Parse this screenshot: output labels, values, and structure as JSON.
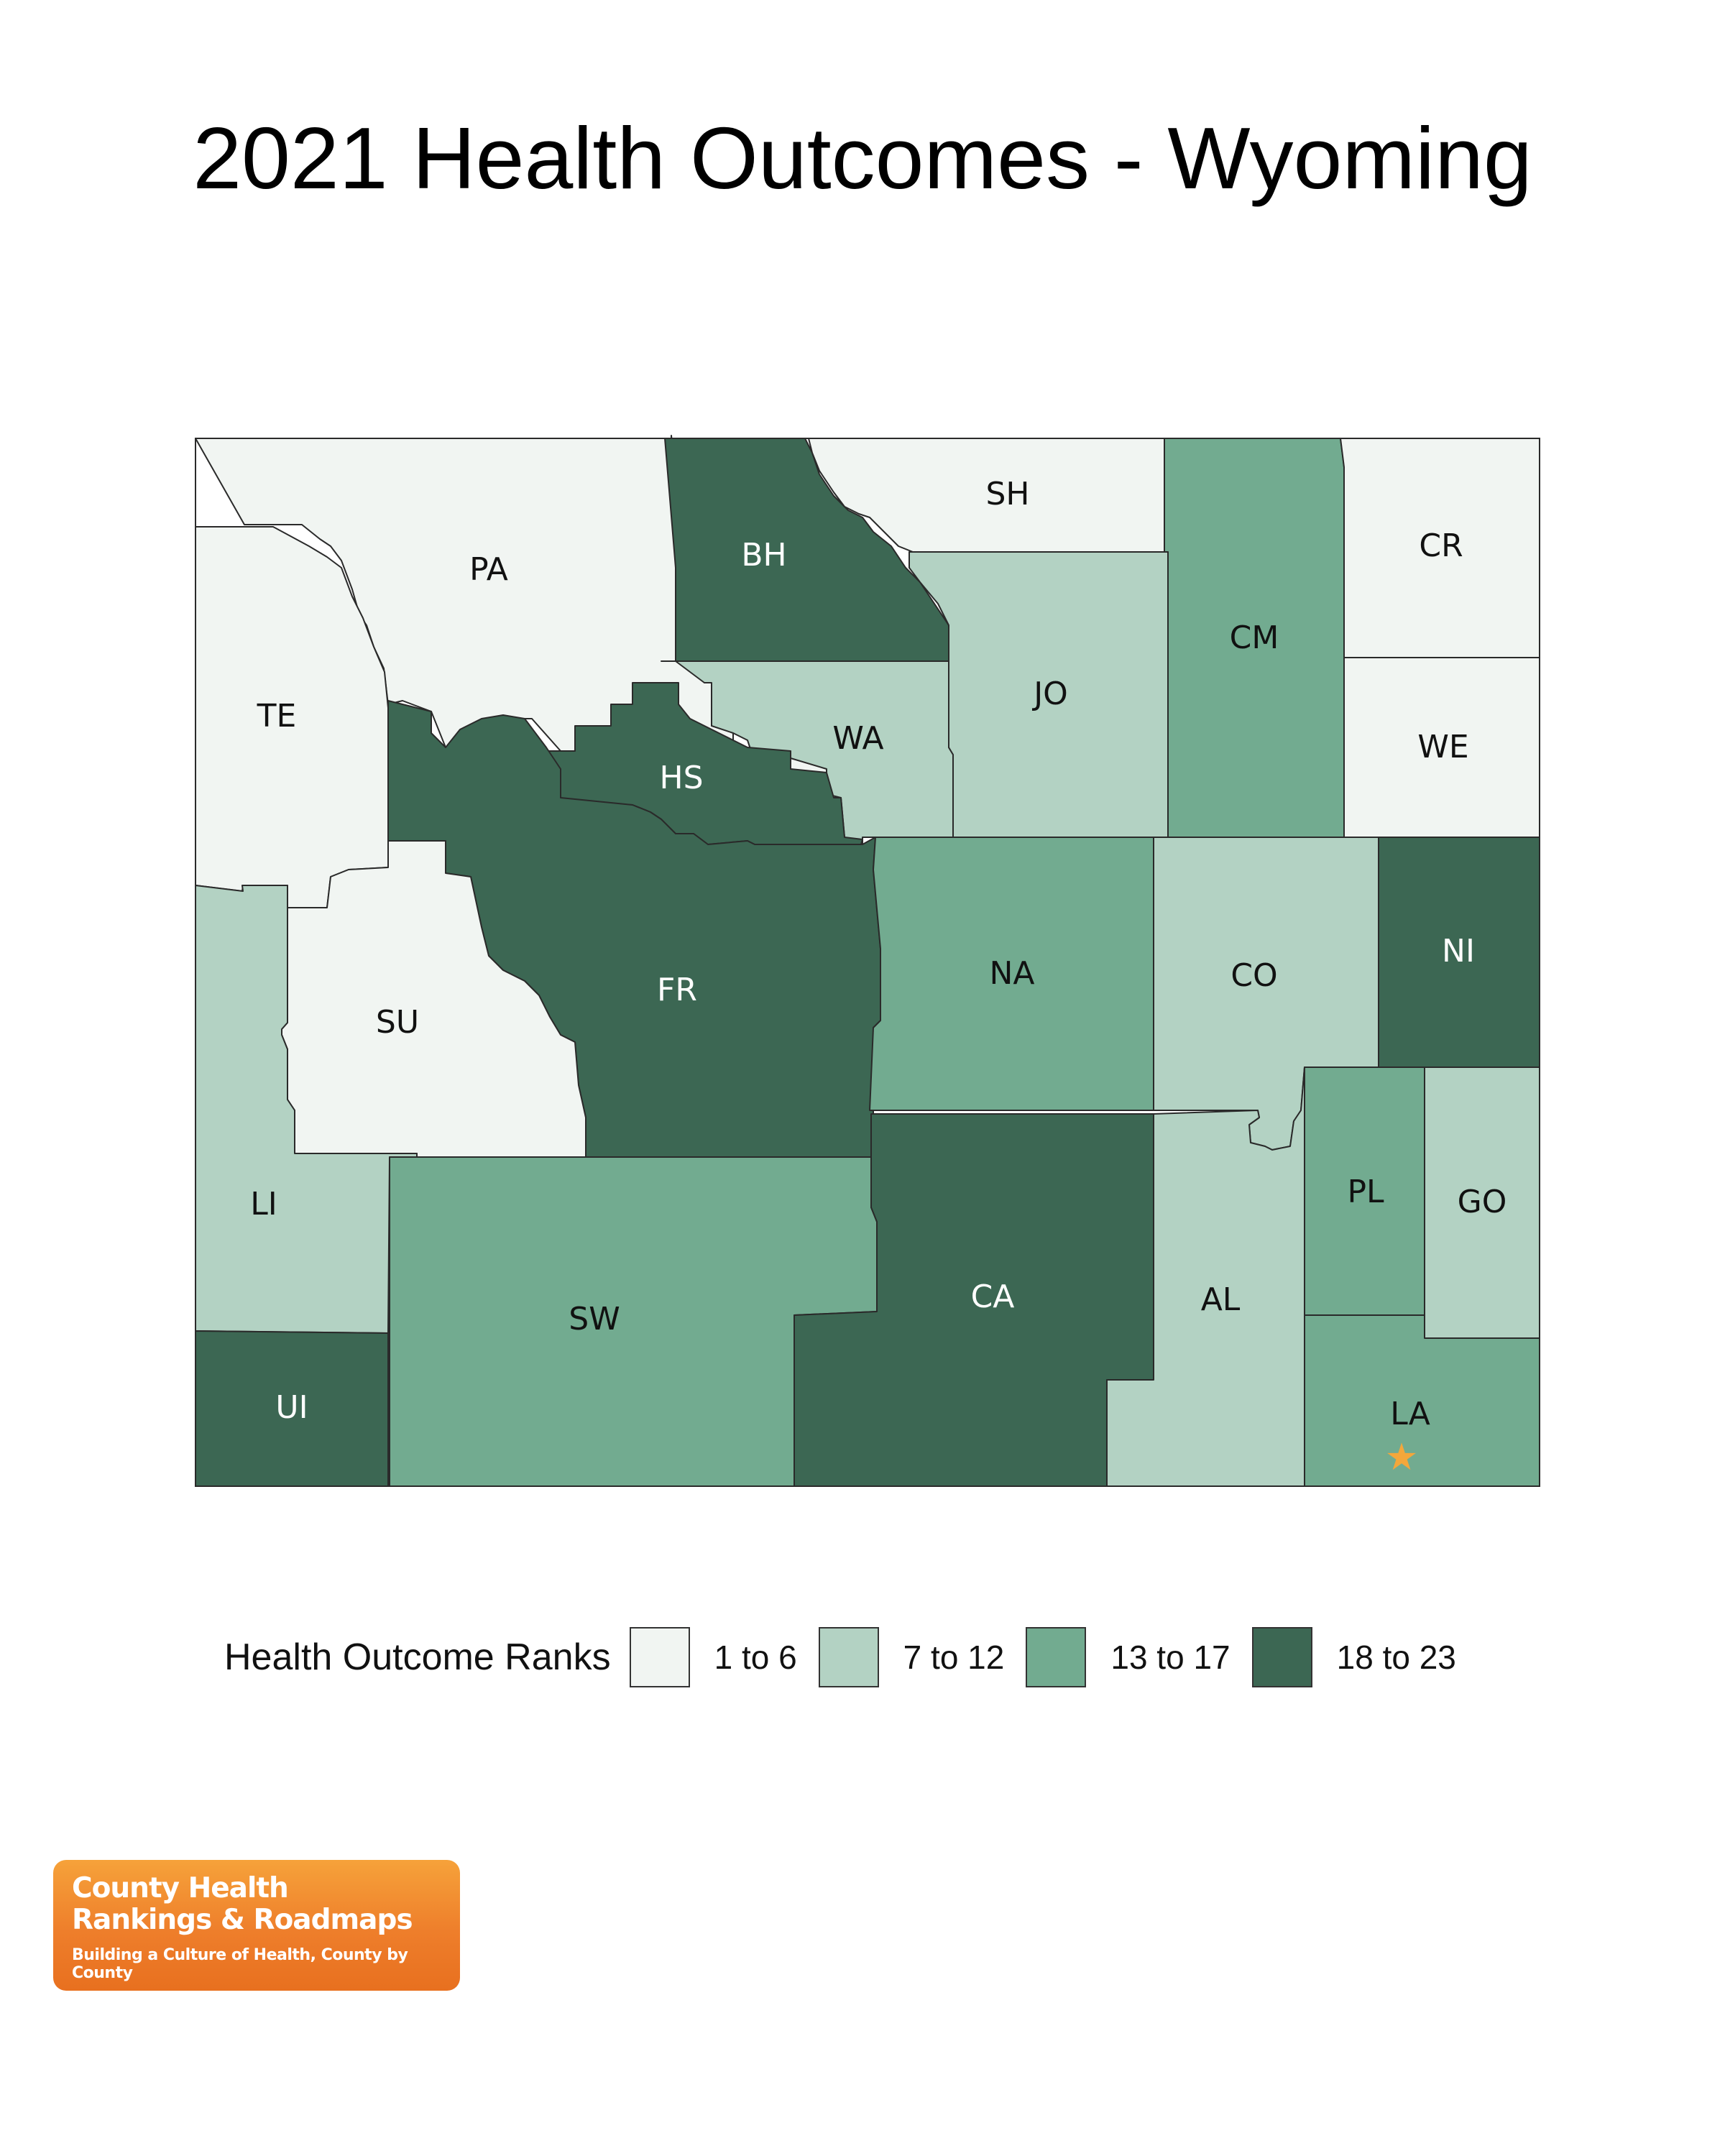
{
  "title": "2021 Health Outcomes - Wyoming",
  "legend": {
    "title": "Health Outcome Ranks",
    "bins": [
      {
        "label": "1 to 6",
        "color": "#f1f5f2"
      },
      {
        "label": "7 to 12",
        "color": "#b3d2c3"
      },
      {
        "label": "13 to 17",
        "color": "#72ab90"
      },
      {
        "label": "18 to 23",
        "color": "#3c6753"
      }
    ]
  },
  "counties": [
    {
      "code": "PA",
      "bin": 0
    },
    {
      "code": "BH",
      "bin": 3
    },
    {
      "code": "SH",
      "bin": 0
    },
    {
      "code": "CM",
      "bin": 2
    },
    {
      "code": "CR",
      "bin": 0
    },
    {
      "code": "TE",
      "bin": 0
    },
    {
      "code": "WA",
      "bin": 1
    },
    {
      "code": "JO",
      "bin": 1
    },
    {
      "code": "WE",
      "bin": 0
    },
    {
      "code": "HS",
      "bin": 3
    },
    {
      "code": "FR",
      "bin": 3
    },
    {
      "code": "SU",
      "bin": 0
    },
    {
      "code": "NA",
      "bin": 2
    },
    {
      "code": "CO",
      "bin": 1
    },
    {
      "code": "NI",
      "bin": 3
    },
    {
      "code": "LI",
      "bin": 1
    },
    {
      "code": "SW",
      "bin": 2
    },
    {
      "code": "CA",
      "bin": 3
    },
    {
      "code": "AL",
      "bin": 1
    },
    {
      "code": "PL",
      "bin": 2
    },
    {
      "code": "GO",
      "bin": 1
    },
    {
      "code": "UI",
      "bin": 3
    },
    {
      "code": "LA",
      "bin": 2
    }
  ],
  "marker": {
    "county": "LA",
    "icon": "star-icon",
    "color": "#f4a73b"
  },
  "logo": {
    "line1": "County Health",
    "line2": "Rankings & Roadmaps",
    "tagline": "Building a Culture of Health, County by County"
  }
}
